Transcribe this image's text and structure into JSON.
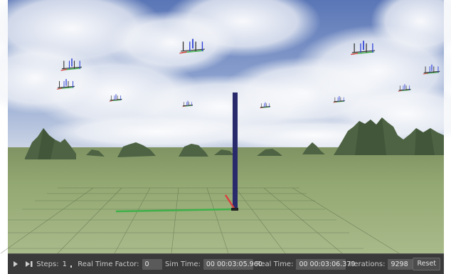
{
  "toolbar": {
    "play_icon": "play-icon",
    "step_icon": "step-forward-icon",
    "steps_label": "Steps:",
    "steps_value": "1",
    "rtf_label": "Real Time Factor:",
    "rtf_value": "0",
    "sim_time_label": "Sim Time:",
    "sim_time_value": "00 00:03:05.960",
    "real_time_label": "Real Time:",
    "real_time_value": "00 00:03:06.379",
    "iterations_label": "Iterations:",
    "iterations_value": "9298",
    "reset_label": "Reset"
  },
  "scene": {
    "sky_top_color": "#5b78b8",
    "sky_bottom_color": "#c9d3e4",
    "ground_color": "#95a873",
    "pillar_color": "#282a6b",
    "axis_x_color": "#d9413f",
    "axis_y_color": "#3fb04a",
    "axis_z_color": "#2c3fd6"
  }
}
